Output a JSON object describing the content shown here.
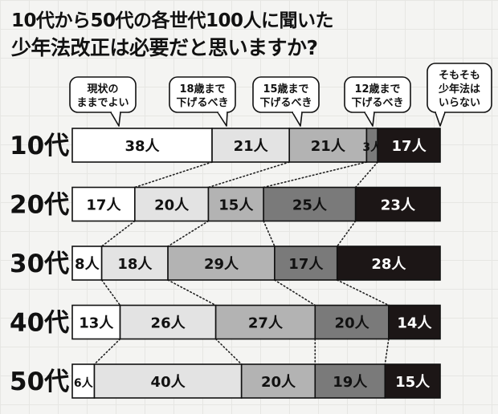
{
  "chart_data": {
    "type": "bar",
    "orientation": "horizontal",
    "stacked": true,
    "title": "10代から50代の各世代100人に聞いた",
    "subtitle": "少年法改正は必要だと思いますか?",
    "categories": [
      "10代",
      "20代",
      "30代",
      "40代",
      "50代"
    ],
    "unit": "人",
    "series": [
      {
        "name": "現状のままでよい",
        "name_lines": [
          "現状の",
          "ままでよい"
        ],
        "color": "#ffffff",
        "values": [
          38,
          17,
          8,
          13,
          6
        ]
      },
      {
        "name": "18歳まで下げるべき",
        "name_lines": [
          "18歳まで",
          "下げるべき"
        ],
        "color": "#e3e3e3",
        "values": [
          21,
          20,
          18,
          26,
          40
        ]
      },
      {
        "name": "15歳まで下げるべき",
        "name_lines": [
          "15歳まで",
          "下げるべき"
        ],
        "color": "#b3b3b3",
        "values": [
          21,
          15,
          29,
          27,
          20
        ]
      },
      {
        "name": "12歳まで下げるべき",
        "name_lines": [
          "12歳まで",
          "下げるべき"
        ],
        "color": "#7a7a7a",
        "values": [
          3,
          25,
          17,
          20,
          19
        ]
      },
      {
        "name": "そもそも少年法はいらない",
        "name_lines": [
          "そもそも",
          "少年法は",
          "いらない"
        ],
        "color": "#1c1616",
        "values": [
          17,
          23,
          28,
          14,
          15
        ]
      }
    ],
    "grid": false,
    "legend": "top"
  }
}
